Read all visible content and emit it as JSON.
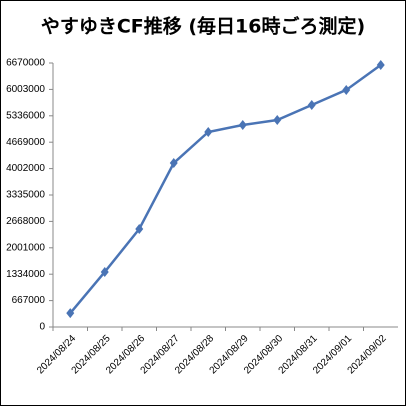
{
  "chart_data": {
    "type": "line",
    "title": "やすゆきCF推移 (毎日16時ごろ測定)",
    "categories": [
      "2024/08/24",
      "2024/08/25",
      "2024/08/26",
      "2024/08/27",
      "2024/08/28",
      "2024/08/29",
      "2024/08/30",
      "2024/08/31",
      "2024/09/01",
      "2024/09/02"
    ],
    "values": [
      350000,
      1390000,
      2476000,
      4143000,
      4927000,
      5104000,
      5230000,
      5609000,
      5989000,
      6620000
    ],
    "color": "#4a74b5",
    "ylim": [
      0,
      6670000
    ],
    "yticks": [
      0,
      667000,
      1334000,
      2001000,
      2668000,
      3335000,
      4002000,
      4669000,
      5336000,
      6003000,
      6670000
    ],
    "grid": false
  }
}
